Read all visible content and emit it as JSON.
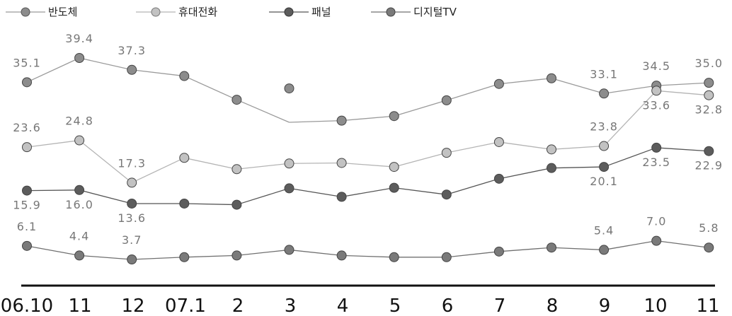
{
  "chart_data": {
    "type": "line",
    "categories": [
      "06.10",
      "11",
      "12",
      "07.1",
      "2",
      "3",
      "4",
      "5",
      "6",
      "7",
      "8",
      "9",
      "10",
      "11"
    ],
    "series": [
      {
        "name": "반도체",
        "color": "#9a9a9a",
        "marker": "#8c8c8c",
        "values": [
          35.1,
          39.4,
          37.3,
          36.2,
          32.0,
          null,
          28.3,
          29.1,
          31.9,
          34.8,
          35.8,
          33.1,
          34.5,
          35.0
        ],
        "labels": [
          "35.1",
          "39.4",
          "37.3",
          "",
          "",
          "",
          "",
          "",
          "",
          "",
          "",
          "33.1",
          "34.5",
          "35.0"
        ]
      },
      {
        "name": "휴대전화",
        "color": "#b4b4b4",
        "marker": "#c2c2c2",
        "values": [
          23.6,
          24.8,
          17.3,
          21.7,
          19.7,
          20.7,
          20.8,
          20.1,
          22.6,
          24.5,
          23.2,
          23.8,
          33.6,
          32.8
        ],
        "labels": [
          "23.6",
          "24.8",
          "17.3",
          "",
          "",
          "",
          "",
          "",
          "",
          "",
          "",
          "23.8",
          "33.6",
          "32.8"
        ]
      },
      {
        "name": "패널",
        "color": "#555555",
        "marker": "#5c5c5c",
        "values": [
          15.9,
          16.0,
          13.6,
          13.6,
          13.4,
          16.3,
          14.8,
          16.4,
          15.2,
          18.0,
          19.9,
          20.1,
          23.5,
          22.9
        ],
        "labels": [
          "15.9",
          "16.0",
          "13.6",
          "",
          "",
          "",
          "",
          "",
          "",
          "",
          "",
          "20.1",
          "23.5",
          "22.9"
        ]
      },
      {
        "name": "디지털TV",
        "color": "#707070",
        "marker": "#7a7a7a",
        "values": [
          6.1,
          4.4,
          3.7,
          4.1,
          4.4,
          5.4,
          4.4,
          4.1,
          4.1,
          5.1,
          5.8,
          5.4,
          7.0,
          5.8
        ],
        "labels": [
          "6.1",
          "4.4",
          "3.7",
          "",
          "",
          "",
          "",
          "",
          "",
          "",
          "",
          "5.4",
          "7.0",
          "5.8"
        ]
      }
    ],
    "extra_point": {
      "series": "반도체",
      "category": "3",
      "value": 34.0
    },
    "gap_value": {
      "series": "반도체",
      "category": "3",
      "value": 28.0
    },
    "ylim": [
      0,
      42
    ],
    "grid": false,
    "legend": "top-left",
    "title": "",
    "xlabel": "",
    "ylabel": ""
  }
}
